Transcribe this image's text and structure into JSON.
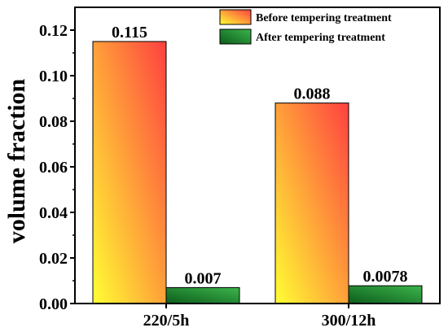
{
  "chart_data": {
    "type": "bar",
    "title": "",
    "xlabel": "",
    "ylabel": "volume fraction",
    "ylim": [
      0,
      0.13
    ],
    "yticks": [
      "0.00",
      "0.02",
      "0.04",
      "0.06",
      "0.08",
      "0.10",
      "0.12"
    ],
    "categories": [
      "220/5h",
      "300/12h"
    ],
    "series": [
      {
        "name": "Before tempering treatment",
        "values": [
          0.115,
          0.088
        ],
        "labels": [
          "0.115",
          "0.088"
        ],
        "gradient": [
          "#ffff33",
          "#ff4040"
        ]
      },
      {
        "name": "After tempering treatment",
        "values": [
          0.007,
          0.0078
        ],
        "labels": [
          "0.007",
          "0.0078"
        ],
        "gradient": [
          "#0c5c1c",
          "#3cb44b"
        ]
      }
    ],
    "legend": "top-right",
    "grid": false
  }
}
